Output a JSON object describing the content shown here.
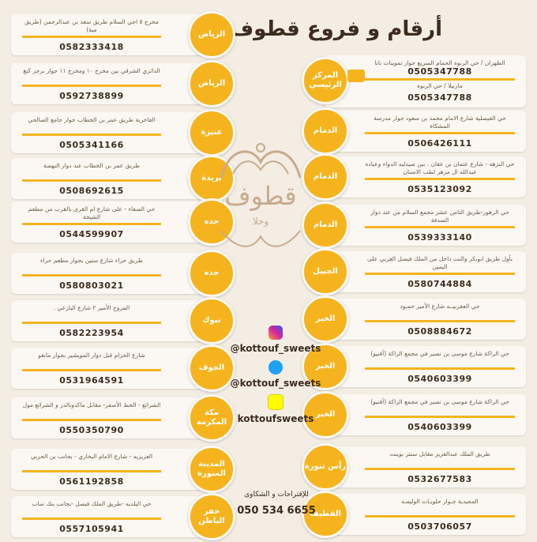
{
  "title": "أرقام و فروع قطوف و حلا",
  "logo": {
    "word": "قطوف",
    "sub": "وحلا"
  },
  "social": {
    "instagram": "@kottouf_sweets",
    "twitter": "@kottouf_sweets",
    "snapchat": "kottoufsweets"
  },
  "complaints": {
    "label": "للإقتراحات و الشكاوى",
    "phone": "050 534 6655"
  },
  "colors": {
    "accent": "#f5b41e",
    "background": "#f3ede4",
    "card": "#fbf8f3",
    "text": "#3d2c1f"
  },
  "left_branches": [
    {
      "city": "الرياض",
      "address": "مخرج ٥ اجي السلام طريق سعد بن عبدالرحمن (طريق مية)",
      "phone": "0582333418"
    },
    {
      "city": "الرياض",
      "address": "الدائري الشرقي بين مخرج ١٠ ومخرج ١١ جوار برجر كنغ",
      "phone": "0592738899"
    },
    {
      "city": "عنيزة",
      "address": "الفاخرية طريق عمر بن الخطاب جوار جامع الصالحي",
      "phone": "0505341166"
    },
    {
      "city": "بريدة",
      "address": "طريق عمر بن الخطاب عند دوار النهضة",
      "phone": "0508692615"
    },
    {
      "city": "جده",
      "address": "حي الصفاء - على شارع ام القرى بالقرب من مطعم الشيخة",
      "phone": "0544599907"
    },
    {
      "city": "جده",
      "address": "طريق حراء شارع ستين بجوار مطعم حراء",
      "phone": "0580803021"
    },
    {
      "city": "تبوك",
      "address": "المروج الأمير ٢ شارع البازعي .",
      "phone": "0582223954"
    },
    {
      "city": "الجوف",
      "address": "شارع الحزام قبل دوار المويشير بجوار مانقو",
      "phone": "0531964591"
    },
    {
      "city": "مكة المكرمة",
      "address": "الشرائع - الخط الأصفر- مقابل ماكدونالدز و الشرائع مول",
      "phone": "0550350790"
    },
    {
      "city": "المدينة المنورة",
      "address": "العزيزيه - شارع الامام البخاري - بجانب بن الحربي",
      "phone": "0561192858"
    },
    {
      "city": "حفر الباطن",
      "address": "حي البلديه -طريق الملك فيصل -بجانب بنك ساب",
      "phone": "0557105941"
    }
  ],
  "right_branches": [
    {
      "city": "المركز الرئيسي",
      "address": "الظهران / حي الربوه الحمام السريع جوار تموينات نانا",
      "phone": "0505347788",
      "address2": "ماربيلا / حي الربوه",
      "phone2": "0505347788"
    },
    {
      "city": "الدمام",
      "address": "حي الفيصلية شارع الامام محمد بن سعود جوار مدرسة المشكاة",
      "phone": "0506426111"
    },
    {
      "city": "الدمام",
      "address": "حي النزهه - شارع عثمان بن عفان ، بين صيدليه الدواء وعياده عبدالله ال مزهر لطب الاسنان",
      "phone": "0535123092"
    },
    {
      "city": "الدمام",
      "address": "حي الزهور-طريق الثامن عشر مجمع السلام من عند دوار الصدفة",
      "phone": "0539333140"
    },
    {
      "city": "الجبيل",
      "address": "بأول طريق ابوبكر والنت داخل من الملك فيصل الغربي على اليمين",
      "phone": "0580744884"
    },
    {
      "city": "الخبر",
      "address": "حي العقربيــه شارع الأمير حمـود",
      "phone": "0508884672"
    },
    {
      "city": "الخبر",
      "address": "حي الراكة شارع موسى بن نصير في مجمع الراكة (أفنيو)",
      "phone": "0540603399"
    },
    {
      "city": "الخبر",
      "address": "حي الراكة شارع موسى بن نصير في مجمع الراكة (أفنيو)",
      "phone": "0540603399"
    },
    {
      "city": "رأس تنورة",
      "address": "طريق الملك عبدالعزيز مقابل سنتر بوينت",
      "phone": "0532677583"
    },
    {
      "city": "القطيف",
      "address": "المجيدية جـوار حلويـات الوليمـه",
      "phone": "0503706057"
    }
  ]
}
